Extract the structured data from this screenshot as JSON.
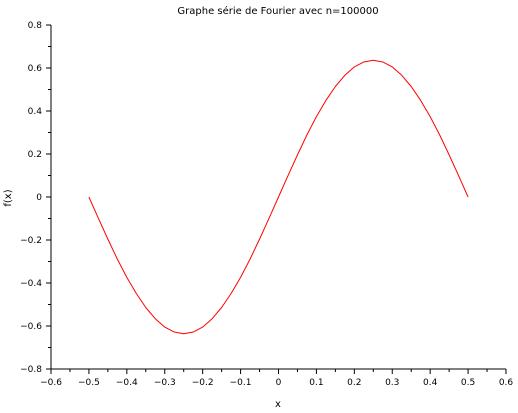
{
  "chart_data": {
    "type": "line",
    "title": "Graphe série de Fourier avec n=100000",
    "xlabel": "x",
    "ylabel": "f(x)",
    "xlim": [
      -0.6,
      0.6
    ],
    "ylim": [
      -0.8,
      0.8
    ],
    "xticks": [
      "−0.6",
      "−0.5",
      "−0.4",
      "−0.3",
      "−0.2",
      "−0.1",
      "0",
      "0.1",
      "0.2",
      "0.3",
      "0.4",
      "0.5",
      "0.6"
    ],
    "yticks": [
      "−0.8",
      "−0.6",
      "−0.4",
      "−0.2",
      "0",
      "0.2",
      "0.4",
      "0.6",
      "0.8"
    ],
    "grid": false,
    "series": [
      {
        "color": "#ff0000",
        "x": [
          -0.5,
          -0.475,
          -0.45,
          -0.425,
          -0.4,
          -0.375,
          -0.35,
          -0.325,
          -0.3,
          -0.275,
          -0.25,
          -0.225,
          -0.2,
          -0.175,
          -0.15,
          -0.125,
          -0.1,
          -0.075,
          -0.05,
          -0.025,
          0,
          0.025,
          0.05,
          0.075,
          0.1,
          0.125,
          0.15,
          0.175,
          0.2,
          0.225,
          0.25,
          0.275,
          0.3,
          0.325,
          0.35,
          0.375,
          0.4,
          0.425,
          0.45,
          0.475,
          0.5
        ],
        "y": [
          0,
          -0.099,
          -0.196,
          -0.289,
          -0.374,
          -0.449,
          -0.514,
          -0.566,
          -0.605,
          -0.628,
          -0.636,
          -0.628,
          -0.605,
          -0.566,
          -0.514,
          -0.449,
          -0.374,
          -0.289,
          -0.196,
          -0.099,
          0,
          0.099,
          0.196,
          0.289,
          0.374,
          0.449,
          0.514,
          0.566,
          0.605,
          0.628,
          0.636,
          0.628,
          0.605,
          0.566,
          0.514,
          0.449,
          0.374,
          0.289,
          0.196,
          0.099,
          0
        ]
      }
    ]
  }
}
